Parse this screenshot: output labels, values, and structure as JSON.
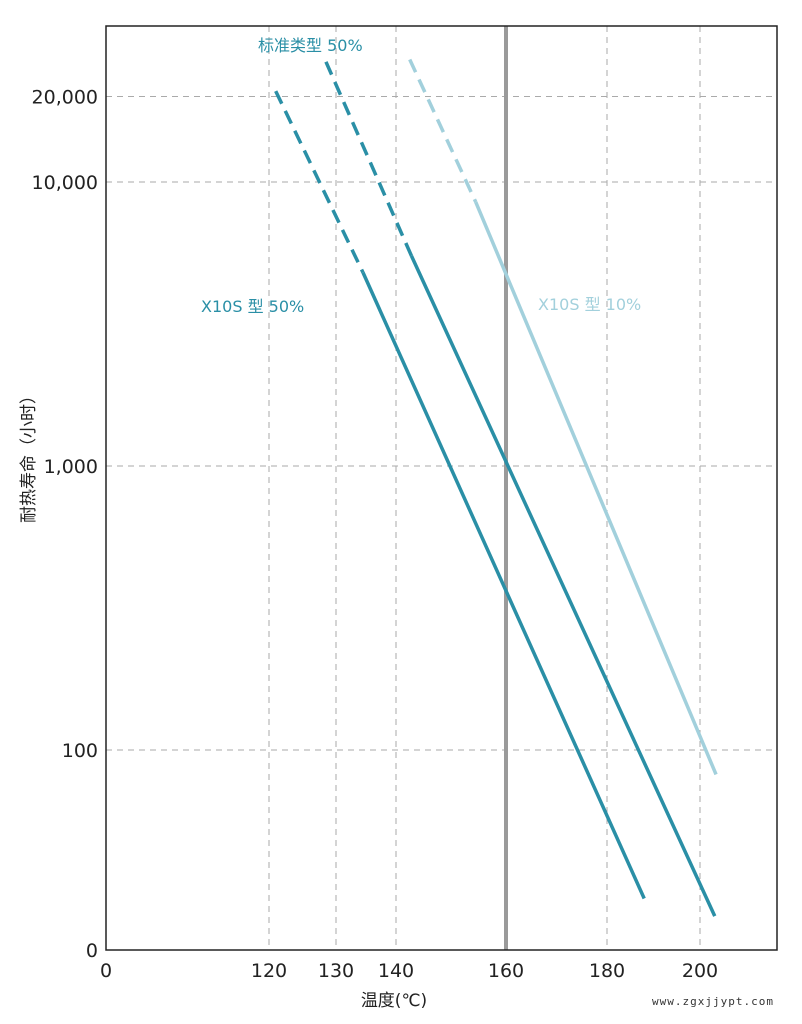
{
  "chart_data": {
    "type": "line",
    "xlabel": "温度(℃)",
    "ylabel": "耐热寿命（小时）",
    "x_ticks": [
      0,
      120,
      130,
      140,
      160,
      180,
      200
    ],
    "y_ticks": [
      0,
      100,
      1000,
      10000,
      20000
    ],
    "x_tick_labels": [
      "0",
      "120",
      "130",
      "140",
      "160",
      "180",
      "200"
    ],
    "y_tick_labels": [
      "0",
      "100",
      "1,000",
      "10,000",
      "20,000"
    ],
    "y_scale": "log",
    "ylim": [
      0,
      40000
    ],
    "xlim": [
      0,
      212
    ],
    "grid": true,
    "reference_line_x": 160,
    "series": [
      {
        "name": "X10S 型 50%",
        "color": "#2a8fa6",
        "points": [
          {
            "x": 121,
            "y": 20900,
            "style": "dashed"
          },
          {
            "x": 134.5,
            "y": 4800,
            "style": "solid"
          },
          {
            "x": 188,
            "y": 30
          }
        ]
      },
      {
        "name": "标准类型 50%",
        "color": "#2a8fa6",
        "points": [
          {
            "x": 128.5,
            "y": 26500,
            "style": "dashed"
          },
          {
            "x": 142.8,
            "y": 5500,
            "style": "solid"
          },
          {
            "x": 202.3,
            "y": 26
          }
        ]
      },
      {
        "name": "X10S 型 10%",
        "color": "#a2d0dc",
        "points": [
          {
            "x": 142.5,
            "y": 27000,
            "style": "dashed"
          },
          {
            "x": 154.5,
            "y": 8500,
            "style": "solid"
          },
          {
            "x": 202.5,
            "y": 82
          }
        ]
      }
    ]
  },
  "watermark": "www.zgxjjypt.com"
}
